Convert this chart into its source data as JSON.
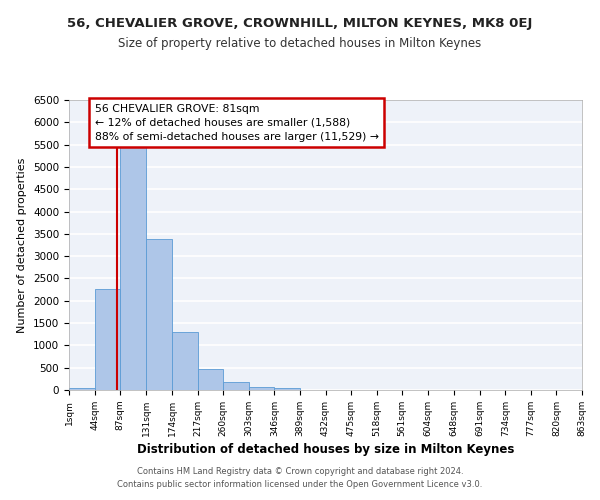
{
  "title": "56, CHEVALIER GROVE, CROWNHILL, MILTON KEYNES, MK8 0EJ",
  "subtitle": "Size of property relative to detached houses in Milton Keynes",
  "xlabel": "Distribution of detached houses by size in Milton Keynes",
  "ylabel": "Number of detached properties",
  "bar_color": "#aec6e8",
  "bar_edge_color": "#5b9bd5",
  "background_color": "#ffffff",
  "plot_bg_color": "#eef2f9",
  "grid_color": "#ffffff",
  "annotation_box_color": "#cc0000",
  "annotation_line_color": "#cc0000",
  "footer_line1": "Contains HM Land Registry data © Crown copyright and database right 2024.",
  "footer_line2": "Contains public sector information licensed under the Open Government Licence v3.0.",
  "annotation_title": "56 CHEVALIER GROVE: 81sqm",
  "annotation_line2": "← 12% of detached houses are smaller (1,588)",
  "annotation_line3": "88% of semi-detached houses are larger (11,529) →",
  "property_line_x": 81,
  "bin_edges": [
    1,
    44,
    87,
    131,
    174,
    217,
    260,
    303,
    346,
    389,
    432,
    475,
    518,
    561,
    604,
    648,
    691,
    734,
    777,
    820,
    863
  ],
  "bin_labels": [
    "1sqm",
    "44sqm",
    "87sqm",
    "131sqm",
    "174sqm",
    "217sqm",
    "260sqm",
    "303sqm",
    "346sqm",
    "389sqm",
    "432sqm",
    "475sqm",
    "518sqm",
    "561sqm",
    "604sqm",
    "648sqm",
    "691sqm",
    "734sqm",
    "777sqm",
    "820sqm",
    "863sqm"
  ],
  "bar_heights": [
    50,
    2270,
    5450,
    3380,
    1300,
    480,
    190,
    75,
    40,
    5,
    2,
    0,
    0,
    0,
    0,
    0,
    0,
    0,
    0,
    0
  ],
  "ylim": [
    0,
    6500
  ],
  "yticks": [
    0,
    500,
    1000,
    1500,
    2000,
    2500,
    3000,
    3500,
    4000,
    4500,
    5000,
    5500,
    6000,
    6500
  ]
}
